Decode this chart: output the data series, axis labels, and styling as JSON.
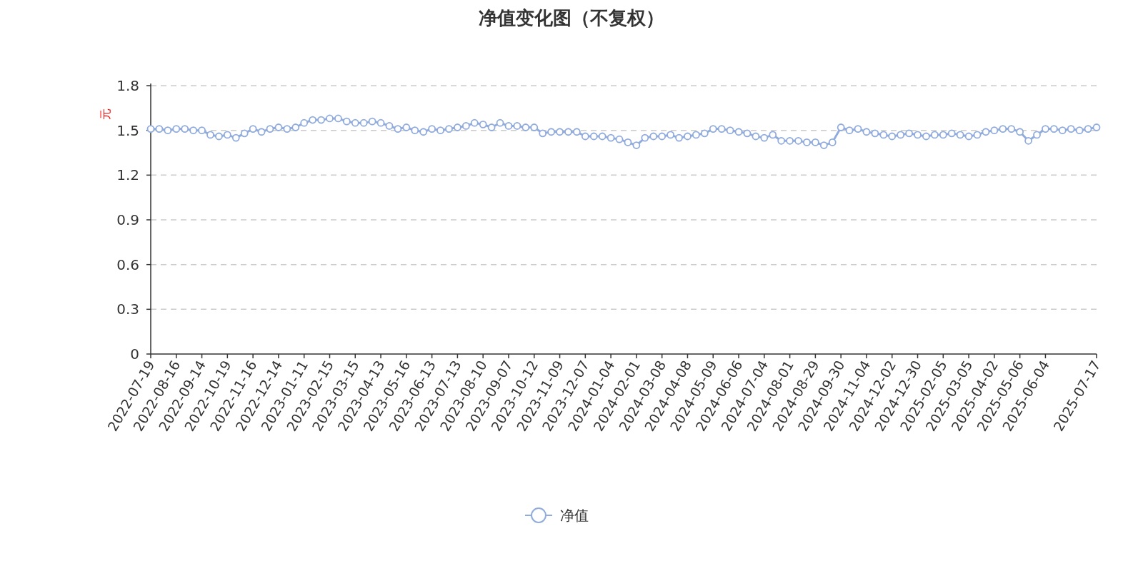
{
  "chart_data": {
    "type": "line",
    "title": "净值变化图（不复权）",
    "ylabel": "元",
    "categories": [
      "2022-07-19",
      null,
      null,
      "2022-08-16",
      null,
      null,
      "2022-09-14",
      null,
      null,
      "2022-10-19",
      null,
      null,
      "2022-11-16",
      null,
      null,
      "2022-12-14",
      null,
      null,
      "2023-01-11",
      null,
      null,
      "2023-02-15",
      null,
      null,
      "2023-03-15",
      null,
      null,
      "2023-04-13",
      null,
      null,
      "2023-05-16",
      null,
      null,
      "2023-06-13",
      null,
      null,
      "2023-07-13",
      null,
      null,
      "2023-08-10",
      null,
      null,
      "2023-09-07",
      null,
      null,
      "2023-10-12",
      null,
      null,
      "2023-11-09",
      null,
      null,
      "2023-12-07",
      null,
      null,
      "2024-01-04",
      null,
      null,
      "2024-02-01",
      null,
      null,
      "2024-03-08",
      null,
      null,
      "2024-04-08",
      null,
      null,
      "2024-05-09",
      null,
      null,
      "2024-06-06",
      null,
      null,
      "2024-07-04",
      null,
      null,
      "2024-08-01",
      null,
      null,
      "2024-08-29",
      null,
      null,
      "2024-09-30",
      null,
      null,
      "2024-11-04",
      null,
      null,
      "2024-12-02",
      null,
      null,
      "2024-12-30",
      null,
      null,
      "2025-02-05",
      null,
      null,
      "2025-03-05",
      null,
      null,
      "2025-04-02",
      null,
      null,
      "2025-05-06",
      null,
      null,
      "2025-06-04",
      null,
      null,
      null,
      null,
      null,
      "2025-07-17"
    ],
    "series": [
      {
        "name": "净值",
        "color": "#91acdc",
        "values": [
          1.51,
          1.51,
          1.5,
          1.51,
          1.51,
          1.5,
          1.5,
          1.47,
          1.46,
          1.47,
          1.45,
          1.48,
          1.51,
          1.49,
          1.51,
          1.52,
          1.51,
          1.52,
          1.55,
          1.57,
          1.57,
          1.58,
          1.58,
          1.56,
          1.55,
          1.55,
          1.56,
          1.55,
          1.53,
          1.51,
          1.52,
          1.5,
          1.49,
          1.51,
          1.5,
          1.51,
          1.52,
          1.53,
          1.55,
          1.54,
          1.52,
          1.55,
          1.53,
          1.53,
          1.52,
          1.52,
          1.48,
          1.49,
          1.49,
          1.49,
          1.49,
          1.46,
          1.46,
          1.46,
          1.45,
          1.44,
          1.42,
          1.4,
          1.45,
          1.46,
          1.46,
          1.47,
          1.45,
          1.46,
          1.47,
          1.48,
          1.51,
          1.51,
          1.5,
          1.49,
          1.48,
          1.46,
          1.45,
          1.47,
          1.43,
          1.43,
          1.43,
          1.42,
          1.42,
          1.4,
          1.42,
          1.52,
          1.5,
          1.51,
          1.49,
          1.48,
          1.47,
          1.46,
          1.47,
          1.48,
          1.47,
          1.46,
          1.47,
          1.47,
          1.48,
          1.47,
          1.46,
          1.47,
          1.49,
          1.5,
          1.51,
          1.51,
          1.49,
          1.43,
          1.47,
          1.51,
          1.51,
          1.5,
          1.51,
          1.5,
          1.51,
          1.52
        ]
      }
    ],
    "ylim": [
      0,
      1.8
    ],
    "yticks": [
      0,
      0.3,
      0.6,
      0.9,
      1.2,
      1.5,
      1.8
    ],
    "grid": "y",
    "legend": "bottom",
    "marker": "circle"
  }
}
